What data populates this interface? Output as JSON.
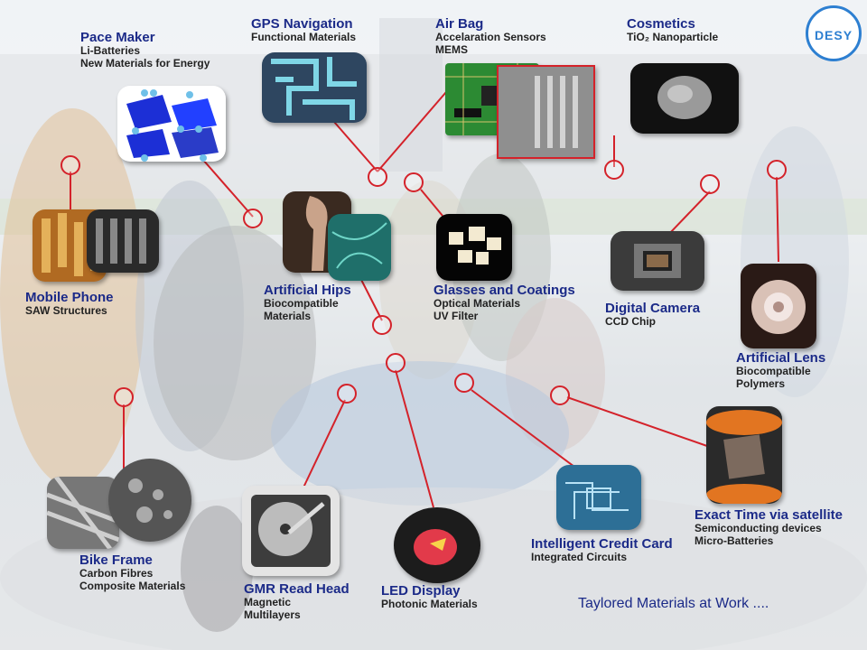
{
  "logo_text": "DESY",
  "footer_text": "Taylored Materials at Work ....",
  "colors": {
    "title": "#1b2a88",
    "line": "#d4222a",
    "subtitle": "#222222"
  },
  "items": [
    {
      "title": "Pace Maker",
      "subtitle": [
        "Li-Batteries",
        "New Materials for Energy"
      ]
    },
    {
      "title": "GPS Navigation",
      "subtitle": [
        "Functional Materials"
      ]
    },
    {
      "title": "Air Bag",
      "subtitle": [
        "Accelaration Sensors",
        "MEMS"
      ]
    },
    {
      "title": "Cosmetics",
      "subtitle": [
        "TiO₂ Nanoparticle"
      ]
    },
    {
      "title": "Mobile Phone",
      "subtitle": [
        "SAW Structures"
      ]
    },
    {
      "title": "Artificial Hips",
      "subtitle": [
        "Biocompatible",
        "Materials"
      ]
    },
    {
      "title": "Glasses and Coatings",
      "subtitle": [
        "Optical Materials",
        "UV Filter"
      ]
    },
    {
      "title": "Digital Camera",
      "subtitle": [
        "CCD Chip"
      ]
    },
    {
      "title": "Artificial Lens",
      "subtitle": [
        "Biocompatible",
        "Polymers"
      ]
    },
    {
      "title": "Exact Time via satellite",
      "subtitle": [
        "Semiconducting devices",
        "Micro-Batteries"
      ]
    },
    {
      "title": "Intelligent Credit Card",
      "subtitle": [
        "Integrated Circuits"
      ]
    },
    {
      "title": "Bike Frame",
      "subtitle": [
        "Carbon Fibres",
        "Composite Materials"
      ]
    },
    {
      "title": "GMR Read Head",
      "subtitle": [
        "Magnetic",
        "Multilayers"
      ]
    },
    {
      "title": "LED Display",
      "subtitle": [
        "Photonic Materials"
      ]
    }
  ]
}
